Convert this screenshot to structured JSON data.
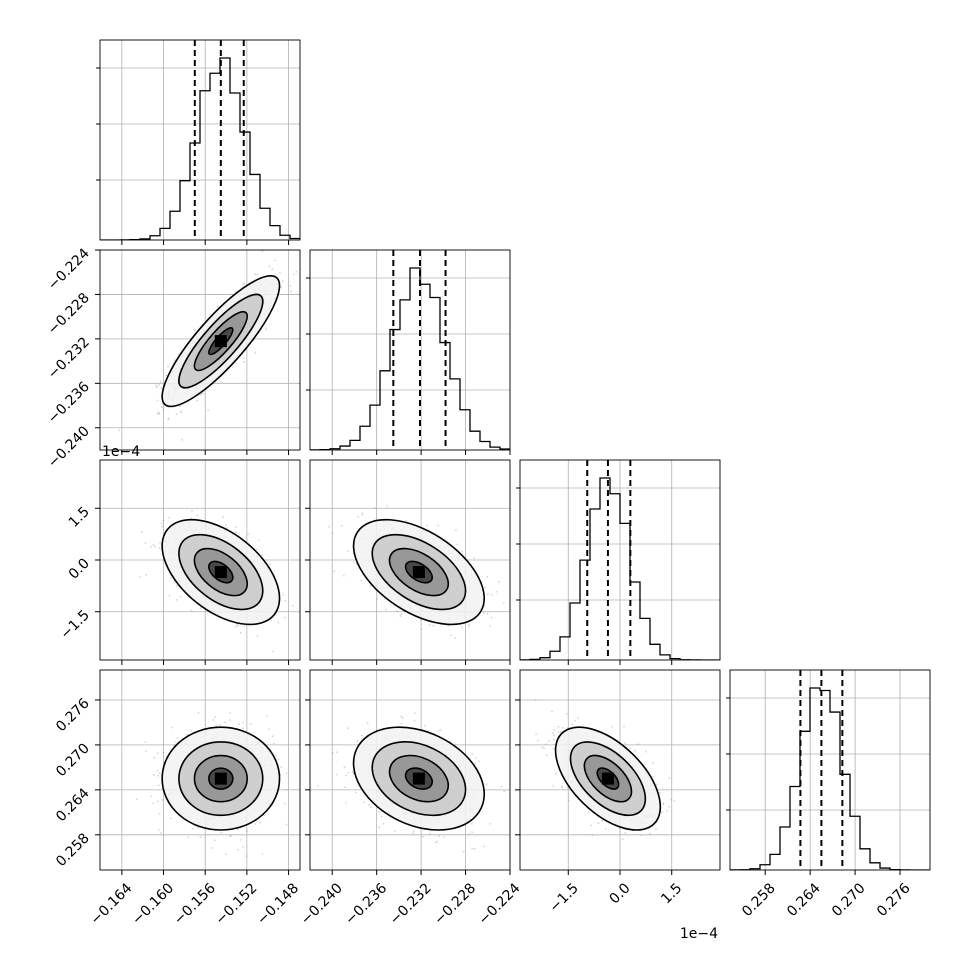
{
  "chart_data": {
    "type": "corner",
    "grid": true,
    "colors": {
      "line": "#000000",
      "grid": "#b0b0b0",
      "points": "#888888",
      "density": "#000000"
    },
    "dimensions": [
      {
        "ticks": [
          -0.164,
          -0.16,
          -0.156,
          -0.152,
          -0.148
        ],
        "tick_labels": [
          "−0.164",
          "−0.160",
          "−0.156",
          "−0.152",
          "−0.148"
        ],
        "range": [
          -0.1661,
          -0.1469
        ],
        "offset_label": "",
        "center": -0.1545,
        "sigma": 0.0023,
        "quantiles": [
          -0.157,
          -0.1545,
          -0.1523
        ]
      },
      {
        "ticks": [
          -0.24,
          -0.236,
          -0.232,
          -0.228,
          -0.224
        ],
        "tick_labels": [
          "−0.240",
          "−0.236",
          "−0.232",
          "−0.228",
          "−0.224"
        ],
        "range": [
          -0.242,
          -0.224
        ],
        "offset_label": "",
        "center": -0.2322,
        "sigma": 0.0024,
        "quantiles": [
          -0.2345,
          -0.2321,
          -0.2298
        ]
      },
      {
        "ticks": [
          -1.5,
          0,
          1.5
        ],
        "tick_labels": [
          "−1.5",
          "0.0",
          "1.5"
        ],
        "range": [
          -2.9,
          2.9
        ],
        "offset_label": "1e−4",
        "center": -0.35,
        "sigma": 0.62,
        "quantiles": [
          -0.95,
          -0.35,
          0.3
        ]
      },
      {
        "ticks": [
          0.258,
          0.264,
          0.27,
          0.276
        ],
        "tick_labels": [
          "0.258",
          "0.264",
          "0.270",
          "0.276"
        ],
        "range": [
          0.2533,
          0.28
        ],
        "offset_label": "",
        "center": 0.2655,
        "sigma": 0.0028,
        "quantiles": [
          0.2627,
          0.2655,
          0.2683
        ]
      }
    ],
    "correlations": {
      "1-0": 0.85,
      "2-0": -0.5,
      "2-1": -0.5,
      "3-0": 0.0,
      "3-1": -0.3,
      "3-2": -0.55
    },
    "histogram_bins": 20,
    "contour_levels": 4
  }
}
